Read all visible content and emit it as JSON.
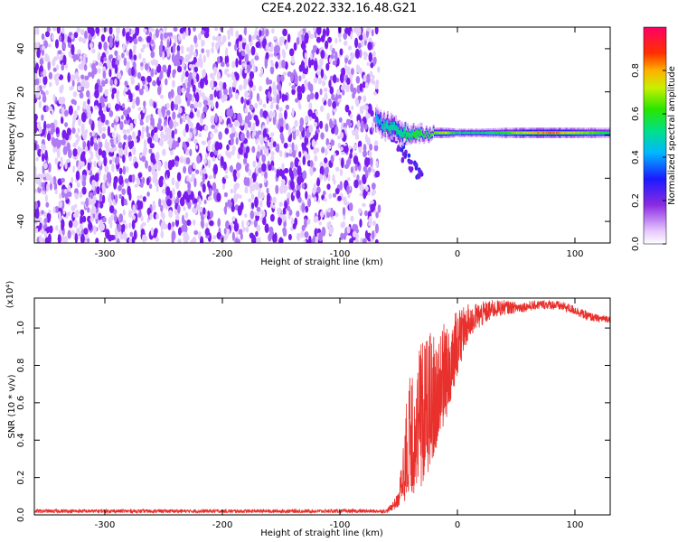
{
  "figure": {
    "title": "C2E4.2022.332.16.48.G21"
  },
  "colorbar": {
    "label": "Normalized spectral amplitude",
    "range": [
      0,
      1
    ],
    "ticks": [
      {
        "value": 0.0,
        "label": "0.0"
      },
      {
        "value": 0.2,
        "label": "0.2"
      },
      {
        "value": 0.4,
        "label": "0.4"
      },
      {
        "value": 0.6,
        "label": "0.6"
      },
      {
        "value": 0.8,
        "label": "0.8"
      }
    ]
  },
  "chart_data": [
    {
      "type": "heatmap",
      "xlabel": "Height of straight line (km)",
      "ylabel": "Frequency (Hz)",
      "xlim": [
        -360,
        130
      ],
      "ylim": [
        -50,
        50
      ],
      "x_ticks": [
        {
          "value": -300,
          "label": "-300"
        },
        {
          "value": -200,
          "label": "-200"
        },
        {
          "value": -100,
          "label": "-100"
        },
        {
          "value": 0,
          "label": "0"
        },
        {
          "value": 100,
          "label": "100"
        }
      ],
      "y_ticks": [
        {
          "value": -40,
          "label": "-40"
        },
        {
          "value": -20,
          "label": "-20"
        },
        {
          "value": 0,
          "label": "0"
        },
        {
          "value": 20,
          "label": "20"
        },
        {
          "value": 40,
          "label": "40"
        }
      ],
      "noise_region": {
        "x_range": [
          -360,
          -68
        ],
        "y_range": [
          -50,
          50
        ],
        "amplitude": 0.1
      },
      "carrier_band": [
        {
          "x": -70,
          "center": 7,
          "half_width": 3,
          "amplitude": 0.45
        },
        {
          "x": -60,
          "center": 4,
          "half_width": 3,
          "amplitude": 0.5
        },
        {
          "x": -50,
          "center": 2,
          "half_width": 3,
          "amplitude": 0.5
        },
        {
          "x": -40,
          "center": 0,
          "half_width": 2,
          "amplitude": 0.55
        },
        {
          "x": -30,
          "center": 0,
          "half_width": 2,
          "amplitude": 0.6
        },
        {
          "x": -20,
          "center": 1,
          "half_width": 1.5,
          "amplitude": 0.7
        },
        {
          "x": -10,
          "center": 1,
          "half_width": 1.5,
          "amplitude": 0.7
        },
        {
          "x": 0,
          "center": 1,
          "half_width": 1.2,
          "amplitude": 0.55
        },
        {
          "x": 20,
          "center": 1,
          "half_width": 1.2,
          "amplitude": 0.55
        },
        {
          "x": 40,
          "center": 1,
          "half_width": 1.5,
          "amplitude": 0.6
        },
        {
          "x": 60,
          "center": 1,
          "half_width": 1.5,
          "amplitude": 0.75
        },
        {
          "x": 80,
          "center": 1,
          "half_width": 1.5,
          "amplitude": 0.85
        },
        {
          "x": 100,
          "center": 1,
          "half_width": 1.5,
          "amplitude": 0.7
        },
        {
          "x": 130,
          "center": 1,
          "half_width": 1.5,
          "amplitude": 0.55
        }
      ],
      "tail": [
        {
          "x": -65,
          "y": 4
        },
        {
          "x": -55,
          "y": 0
        },
        {
          "x": -48,
          "y": -5
        },
        {
          "x": -43,
          "y": -10
        },
        {
          "x": -38,
          "y": -14
        },
        {
          "x": -33,
          "y": -17
        }
      ]
    },
    {
      "type": "line",
      "xlabel": "Height of straight line (km)",
      "ylabel": "SNR (10 * v/v)",
      "yscale_label": "(x10⁴)",
      "xlim": [
        -360,
        130
      ],
      "ylim": [
        0,
        1.16
      ],
      "x_ticks": [
        {
          "value": -300,
          "label": "-300"
        },
        {
          "value": -200,
          "label": "-200"
        },
        {
          "value": -100,
          "label": "-100"
        },
        {
          "value": 0,
          "label": "0"
        },
        {
          "value": 100,
          "label": "100"
        }
      ],
      "y_ticks": [
        {
          "value": 0.0,
          "label": "0.0"
        },
        {
          "value": 0.2,
          "label": "0.2"
        },
        {
          "value": 0.4,
          "label": "0.4"
        },
        {
          "value": 0.6,
          "label": "0.6"
        },
        {
          "value": 0.8,
          "label": "0.8"
        },
        {
          "value": 1.0,
          "label": "1.0"
        }
      ],
      "color": "#e8302c",
      "envelope": {
        "x": [
          -360,
          -100,
          -60,
          -50,
          -40,
          -30,
          -20,
          -10,
          0,
          10,
          20,
          30,
          40,
          50,
          60,
          70,
          80,
          90,
          100,
          110,
          120,
          130
        ],
        "low": [
          0.01,
          0.01,
          0.01,
          0.04,
          0.1,
          0.15,
          0.3,
          0.5,
          0.75,
          0.95,
          1.0,
          1.05,
          1.07,
          1.08,
          1.09,
          1.1,
          1.1,
          1.09,
          1.07,
          1.04,
          1.03,
          1.03
        ],
        "high": [
          0.03,
          0.03,
          0.03,
          0.12,
          0.85,
          0.95,
          1.0,
          1.05,
          1.1,
          1.13,
          1.14,
          1.15,
          1.15,
          1.14,
          1.14,
          1.15,
          1.15,
          1.14,
          1.12,
          1.09,
          1.07,
          1.07
        ]
      }
    }
  ]
}
